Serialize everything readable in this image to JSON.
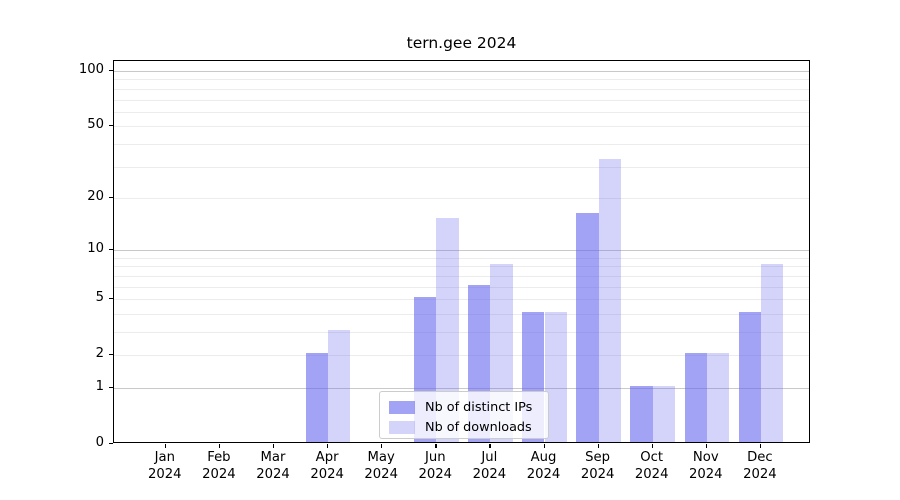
{
  "figure": {
    "title": "tern.gee 2024"
  },
  "legend": {
    "items": [
      {
        "label": "Nb of distinct IPs",
        "series_index": 0
      },
      {
        "label": "Nb of downloads",
        "series_index": 1
      }
    ]
  },
  "chart_data": {
    "type": "bar",
    "title": "tern.gee 2024",
    "categories": [
      "Jan",
      "Feb",
      "Mar",
      "Apr",
      "May",
      "Jun",
      "Jul",
      "Aug",
      "Sep",
      "Oct",
      "Nov",
      "Dec"
    ],
    "category_year": "2024",
    "series": [
      {
        "name": "Nb of distinct IPs",
        "color": "rgba(102,102,238,0.6)",
        "values": [
          0,
          0,
          0,
          2,
          0,
          5,
          6,
          4,
          16,
          1,
          2,
          4
        ]
      },
      {
        "name": "Nb of downloads",
        "color": "rgba(102,102,238,0.28)",
        "values": [
          0,
          0,
          0,
          3,
          0,
          15,
          8,
          4,
          32,
          1,
          2,
          8
        ]
      }
    ],
    "xlabel": "",
    "ylabel": "",
    "y_axis": {
      "scale": "log1p",
      "tick_labels": [
        100,
        50,
        20,
        10,
        5,
        2,
        1,
        0
      ],
      "major_gridlines": [
        1,
        10,
        100
      ],
      "minor_gridlines": [
        2,
        3,
        4,
        5,
        6,
        7,
        8,
        9,
        20,
        30,
        40,
        50,
        60,
        70,
        80,
        90
      ],
      "ylim": [
        0,
        113
      ]
    },
    "grid": true,
    "legend_position": "lower center"
  },
  "colors": {
    "bar_ips": "rgba(102,102,238,0.6)",
    "bar_downloads": "rgba(102,102,238,0.28)",
    "grid_major": "#c9c9c9",
    "grid_minor": "#ececec",
    "spine": "#000000",
    "legend_border": "#cccccc"
  }
}
